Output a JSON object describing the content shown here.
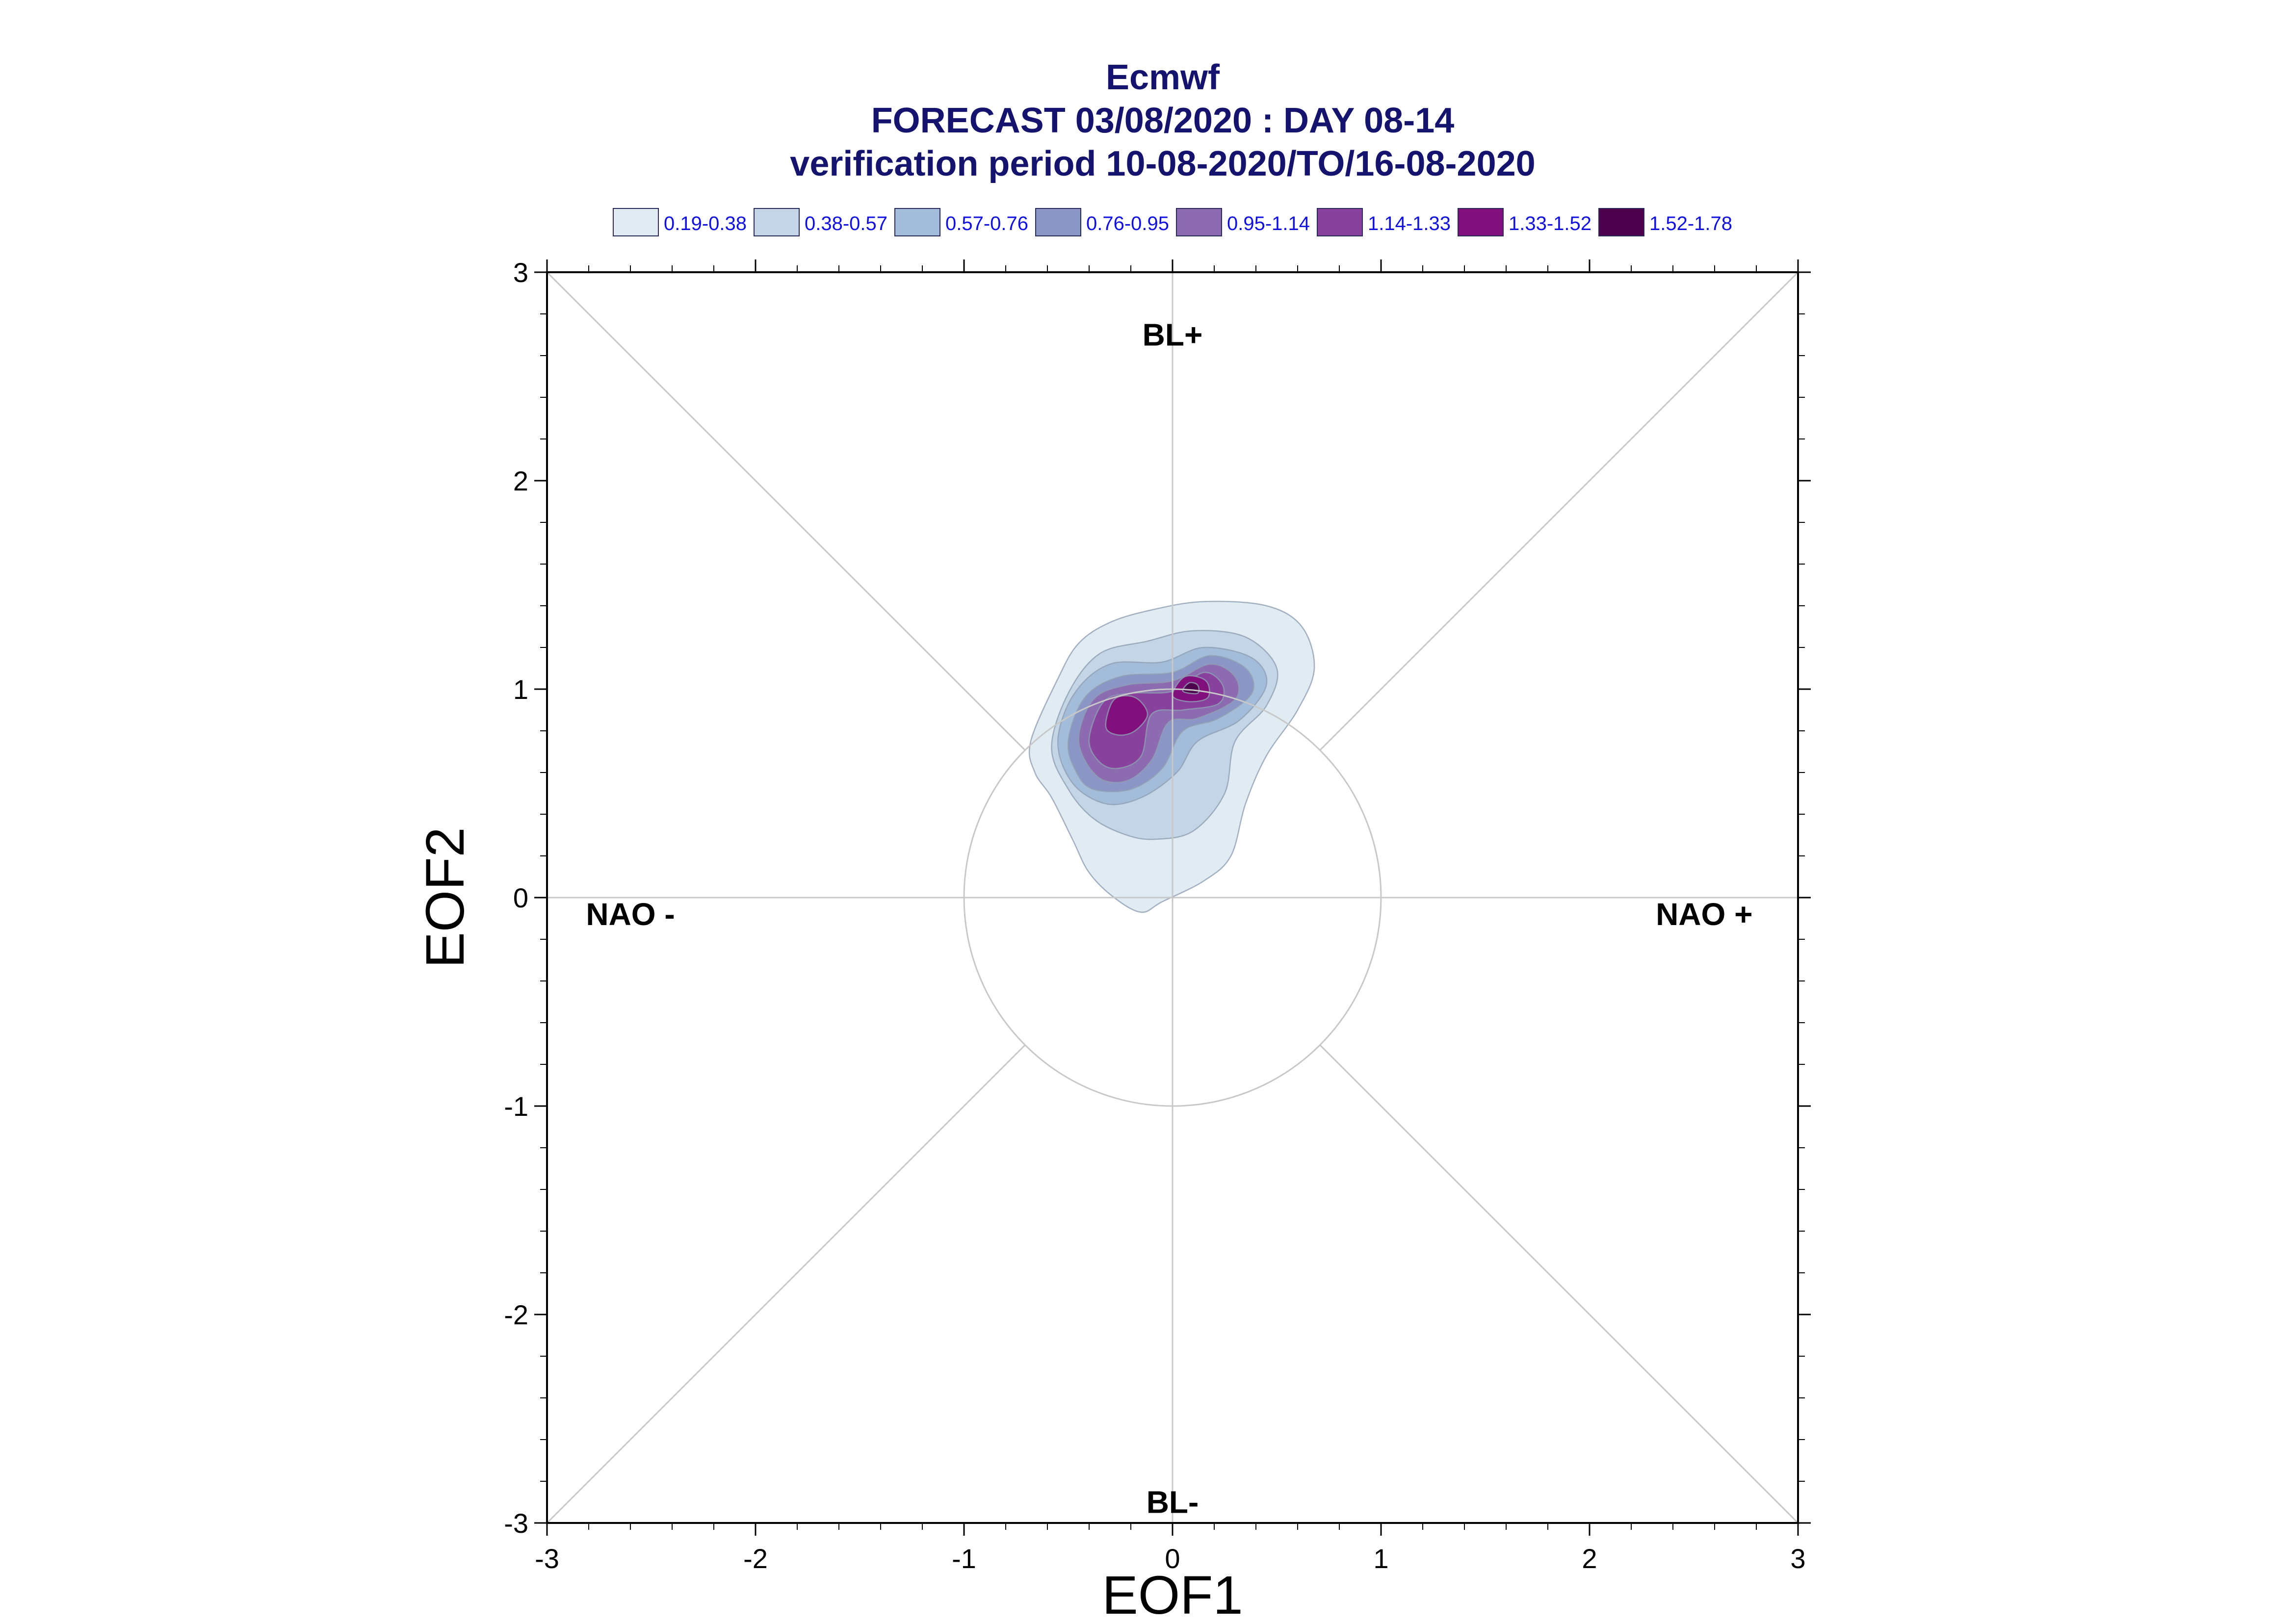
{
  "chart_data": {
    "type": "contour",
    "title": [
      "Ecmwf",
      "FORECAST 03/08/2020 : DAY 08-14",
      "verification period 10-08-2020/TO/16-08-2020"
    ],
    "xlabel": "EOF1",
    "ylabel": "EOF2",
    "xlim": [
      -3,
      3
    ],
    "ylim": [
      -3,
      3
    ],
    "xticks": [
      -3,
      -2,
      -1,
      0,
      1,
      2,
      3
    ],
    "yticks": [
      -3,
      -2,
      -1,
      0,
      1,
      2,
      3
    ],
    "grid": false,
    "reference_circle_radius": 1,
    "regime_labels": [
      {
        "text": "BL+",
        "x": 0,
        "y": 2.7
      },
      {
        "text": "BL-",
        "x": 0,
        "y": -2.9
      },
      {
        "text": "NAO -",
        "x": -2.6,
        "y": -0.08
      },
      {
        "text": "NAO +",
        "x": 2.55,
        "y": -0.08
      }
    ],
    "legend_position": "top",
    "levels": [
      {
        "label": "0.19-0.38",
        "color": "#e1ebf2"
      },
      {
        "label": "0.38-0.57",
        "color": "#c4d6e6"
      },
      {
        "label": "0.57-0.76",
        "color": "#a3bcd9"
      },
      {
        "label": "0.76-0.95",
        "color": "#8c96c6"
      },
      {
        "label": "0.95-1.14",
        "color": "#8c6bb1"
      },
      {
        "label": "1.14-1.33",
        "color": "#88419d"
      },
      {
        "label": "1.33-1.52",
        "color": "#810f7c"
      },
      {
        "label": "1.52-1.78",
        "color": "#4d004b"
      }
    ],
    "contours": [
      {
        "level": 0,
        "points": [
          [
            -0.68,
            0.75
          ],
          [
            -0.55,
            1.05
          ],
          [
            -0.45,
            1.22
          ],
          [
            -0.3,
            1.32
          ],
          [
            -0.1,
            1.38
          ],
          [
            0.15,
            1.42
          ],
          [
            0.45,
            1.4
          ],
          [
            0.62,
            1.3
          ],
          [
            0.68,
            1.1
          ],
          [
            0.6,
            0.9
          ],
          [
            0.45,
            0.68
          ],
          [
            0.35,
            0.45
          ],
          [
            0.28,
            0.2
          ],
          [
            0.15,
            0.08
          ],
          [
            -0.05,
            -0.02
          ],
          [
            -0.15,
            -0.07
          ],
          [
            -0.28,
            0.0
          ],
          [
            -0.4,
            0.12
          ],
          [
            -0.48,
            0.28
          ],
          [
            -0.58,
            0.48
          ],
          [
            -0.66,
            0.6
          ]
        ]
      },
      {
        "level": 1,
        "points": [
          [
            -0.58,
            0.72
          ],
          [
            -0.5,
            0.98
          ],
          [
            -0.35,
            1.17
          ],
          [
            -0.12,
            1.23
          ],
          [
            0.1,
            1.28
          ],
          [
            0.35,
            1.25
          ],
          [
            0.5,
            1.1
          ],
          [
            0.45,
            0.92
          ],
          [
            0.3,
            0.75
          ],
          [
            0.25,
            0.5
          ],
          [
            0.1,
            0.32
          ],
          [
            -0.08,
            0.28
          ],
          [
            -0.22,
            0.3
          ],
          [
            -0.38,
            0.38
          ],
          [
            -0.5,
            0.52
          ]
        ]
      },
      {
        "level": 2,
        "points": [
          [
            -0.55,
            0.75
          ],
          [
            -0.47,
            0.98
          ],
          [
            -0.3,
            1.12
          ],
          [
            -0.05,
            1.13
          ],
          [
            0.15,
            1.2
          ],
          [
            0.38,
            1.15
          ],
          [
            0.45,
            1.02
          ],
          [
            0.32,
            0.85
          ],
          [
            0.12,
            0.75
          ],
          [
            0.02,
            0.6
          ],
          [
            -0.15,
            0.48
          ],
          [
            -0.32,
            0.45
          ],
          [
            -0.48,
            0.55
          ]
        ]
      },
      {
        "level": 3,
        "points": [
          [
            -0.5,
            0.75
          ],
          [
            -0.42,
            0.96
          ],
          [
            -0.25,
            1.06
          ],
          [
            0.0,
            1.08
          ],
          [
            0.18,
            1.16
          ],
          [
            0.35,
            1.1
          ],
          [
            0.38,
            0.98
          ],
          [
            0.22,
            0.86
          ],
          [
            0.05,
            0.8
          ],
          [
            -0.05,
            0.62
          ],
          [
            -0.2,
            0.52
          ],
          [
            -0.38,
            0.52
          ],
          [
            -0.46,
            0.6
          ]
        ]
      },
      {
        "level": 4,
        "points": [
          [
            -0.45,
            0.75
          ],
          [
            -0.38,
            0.95
          ],
          [
            -0.22,
            1.02
          ],
          [
            0.0,
            1.04
          ],
          [
            0.18,
            1.12
          ],
          [
            0.3,
            1.06
          ],
          [
            0.3,
            0.95
          ],
          [
            0.12,
            0.86
          ],
          [
            -0.02,
            0.84
          ],
          [
            -0.1,
            0.66
          ],
          [
            -0.22,
            0.56
          ],
          [
            -0.36,
            0.58
          ]
        ]
      },
      {
        "level": 5,
        "points": [
          [
            -0.4,
            0.76
          ],
          [
            -0.33,
            0.94
          ],
          [
            -0.2,
            0.98
          ],
          [
            0.0,
            0.99
          ],
          [
            0.15,
            1.08
          ],
          [
            0.24,
            1.02
          ],
          [
            0.22,
            0.93
          ],
          [
            0.05,
            0.9
          ],
          [
            -0.1,
            0.88
          ],
          [
            -0.15,
            0.68
          ],
          [
            -0.26,
            0.62
          ],
          [
            -0.35,
            0.65
          ]
        ]
      },
      {
        "level": 6,
        "points": [
          [
            -0.32,
            0.82
          ],
          [
            -0.28,
            0.95
          ],
          [
            -0.18,
            0.96
          ],
          [
            -0.12,
            0.88
          ],
          [
            -0.18,
            0.8
          ],
          [
            -0.26,
            0.78
          ]
        ]
      },
      {
        "level": 6,
        "points": [
          [
            0.0,
            0.97
          ],
          [
            0.06,
            1.06
          ],
          [
            0.16,
            1.04
          ],
          [
            0.17,
            0.96
          ],
          [
            0.08,
            0.94
          ]
        ]
      },
      {
        "level": 7,
        "points": [
          [
            0.05,
            0.99
          ],
          [
            0.08,
            1.03
          ],
          [
            0.12,
            1.02
          ],
          [
            0.12,
            0.98
          ]
        ]
      }
    ]
  }
}
